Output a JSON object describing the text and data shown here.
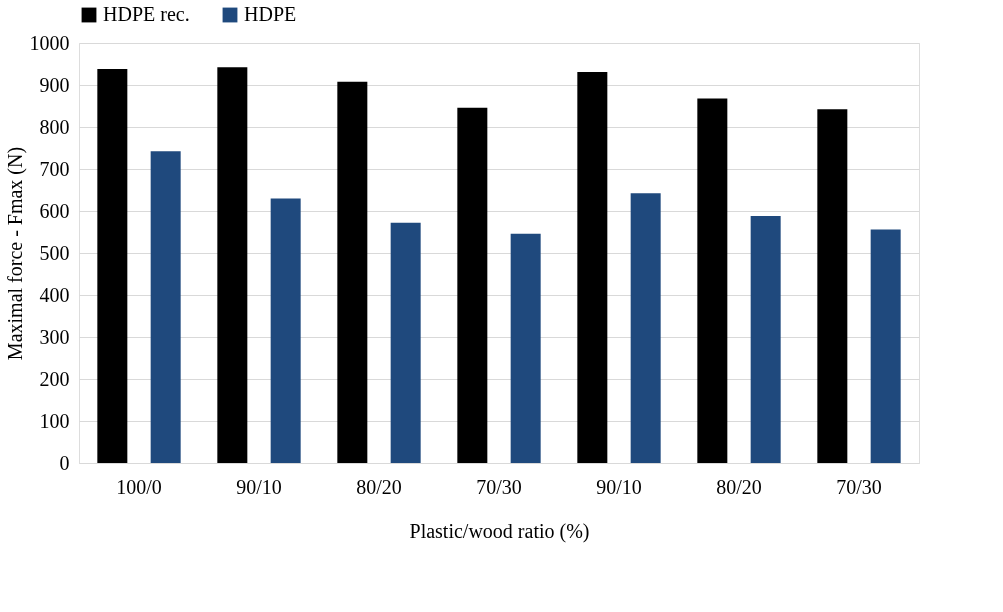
{
  "chart_data": {
    "type": "bar",
    "xlabel": "Plastic/wood ratio (%)",
    "ylabel": "Maximal force - Fmax (N)",
    "categories": [
      "100/0",
      "90/10",
      "80/20",
      "70/30",
      "90/10",
      "80/20",
      "70/30"
    ],
    "series": [
      {
        "name": "HDPE rec.",
        "color": "#000000",
        "values": [
          938,
          942,
          908,
          846,
          931,
          868,
          842
        ]
      },
      {
        "name": "HDPE",
        "color": "#1f497d",
        "values": [
          742,
          630,
          572,
          546,
          642,
          588,
          556
        ]
      }
    ],
    "ylim": [
      0,
      1000
    ],
    "yticks": [
      0,
      100,
      200,
      300,
      400,
      500,
      600,
      700,
      800,
      900,
      1000
    ],
    "grid": "y",
    "legend": "top"
  }
}
